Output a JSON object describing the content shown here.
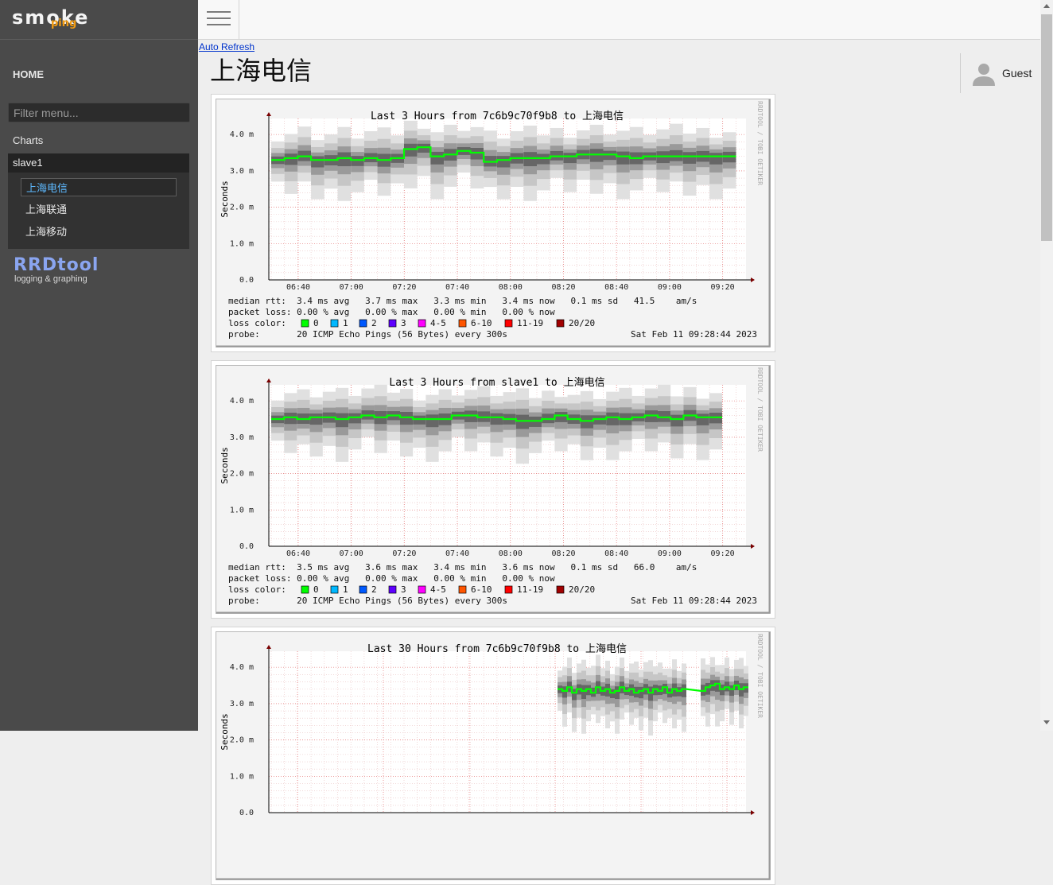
{
  "app": {
    "logo_main": "smoke",
    "logo_sub": "ping"
  },
  "sidebar": {
    "home": "HOME",
    "filter_placeholder": "Filter menu...",
    "charts": "Charts",
    "group": "slave1",
    "items": [
      {
        "label": "上海电信",
        "active": true
      },
      {
        "label": "上海联通",
        "active": false
      },
      {
        "label": "上海移动",
        "active": false
      }
    ],
    "rrd_logo": "RRDtool",
    "rrd_tagline": "logging & graphing"
  },
  "header": {
    "menu_icon": "hamburger-icon",
    "auto_refresh": "Auto Refresh",
    "title": "上海电信",
    "user": {
      "icon": "user-icon",
      "name": "Guest"
    }
  },
  "colors": {
    "loss": [
      "#00ff00",
      "#00b8ff",
      "#0059ff",
      "#5e00ff",
      "#ff00ff",
      "#ff5500",
      "#ff0000",
      "#a10000"
    ],
    "median": "#00ff00"
  },
  "graphs": [
    {
      "title": "Last 3 Hours from 7c6b9c70f9b8 to 上海电信",
      "ylabel": "Seconds",
      "y_ticks": [
        "0.0",
        "1.0 m",
        "2.0 m",
        "3.0 m",
        "4.0 m"
      ],
      "x_ticks": [
        "06:40",
        "07:00",
        "07:20",
        "07:40",
        "08:00",
        "08:20",
        "08:40",
        "09:00",
        "09:20"
      ],
      "median": [
        3.3,
        3.35,
        3.4,
        3.3,
        3.3,
        3.35,
        3.3,
        3.35,
        3.3,
        3.35,
        3.6,
        3.65,
        3.4,
        3.45,
        3.55,
        3.5,
        3.25,
        3.3,
        3.35,
        3.35,
        3.35,
        3.4,
        3.4,
        3.45,
        3.45,
        3.45,
        3.4,
        3.35,
        3.4,
        3.4,
        3.4,
        3.4,
        3.4,
        3.4,
        3.4
      ],
      "rtt": "median rtt:  3.4 ms avg   3.7 ms max   3.3 ms min   3.4 ms now   0.1 ms sd   41.5    am/s",
      "loss": "packet loss: 0.00 % avg   0.00 % max   0.00 % min   0.00 % now",
      "loss_color_label": "loss color:",
      "loss_legend": [
        "0",
        "1",
        "2",
        "3",
        "4-5",
        "6-10",
        "11-19",
        "20/20"
      ],
      "probe": "probe:       20 ICMP Echo Pings (56 Bytes) every 300s",
      "date": "Sat Feb 11 09:28:44 2023",
      "watermark": "RRDTOOL / TOBI OETIKER"
    },
    {
      "title": "Last 3 Hours from slave1 to 上海电信",
      "ylabel": "Seconds",
      "y_ticks": [
        "0.0",
        "1.0 m",
        "2.0 m",
        "3.0 m",
        "4.0 m"
      ],
      "x_ticks": [
        "06:40",
        "07:00",
        "07:20",
        "07:40",
        "08:00",
        "08:20",
        "08:40",
        "09:00",
        "09:20"
      ],
      "median": [
        3.5,
        3.55,
        3.5,
        3.55,
        3.55,
        3.5,
        3.55,
        3.6,
        3.55,
        3.6,
        3.55,
        3.5,
        3.5,
        3.5,
        3.6,
        3.6,
        3.55,
        3.55,
        3.5,
        3.45,
        3.45,
        3.5,
        3.6,
        3.5,
        3.45,
        3.5,
        3.55,
        3.5,
        3.55,
        3.6,
        3.55,
        3.5,
        3.6,
        3.55,
        3.55
      ],
      "rtt": "median rtt:  3.5 ms avg   3.6 ms max   3.4 ms min   3.6 ms now   0.1 ms sd   66.0    am/s",
      "loss": "packet loss: 0.00 % avg   0.00 % max   0.00 % min   0.00 % now",
      "loss_color_label": "loss color:",
      "loss_legend": [
        "0",
        "1",
        "2",
        "3",
        "4-5",
        "6-10",
        "11-19",
        "20/20"
      ],
      "probe": "probe:       20 ICMP Echo Pings (56 Bytes) every 300s",
      "date": "Sat Feb 11 09:28:44 2023",
      "watermark": "RRDTOOL / TOBI OETIKER"
    },
    {
      "title": "Last 30 Hours from 7c6b9c70f9b8 to 上海电信",
      "ylabel": "Seconds",
      "y_ticks": [
        "0.0",
        "1.0 m",
        "2.0 m",
        "3.0 m",
        "4.0 m"
      ],
      "x_ticks": [],
      "median": [
        3.4,
        3.35,
        3.45,
        3.3,
        3.4,
        3.35,
        3.4,
        3.3,
        3.45,
        3.35,
        3.4,
        3.3,
        3.35,
        3.45,
        3.35,
        3.4,
        3.3,
        3.35,
        3.4,
        3.3,
        3.4,
        3.35,
        3.45,
        3.3,
        3.4,
        3.35,
        3.4,
        3.3,
        3.35,
        3.4,
        3.35,
        3.45,
        3.5,
        3.55,
        3.4,
        3.45,
        3.4,
        3.5,
        3.4,
        3.45
      ],
      "rtt": "",
      "loss": "",
      "loss_color_label": "",
      "loss_legend": [],
      "probe": "",
      "date": "",
      "watermark": "RRDTOOL / TOBI OETIKER"
    }
  ]
}
